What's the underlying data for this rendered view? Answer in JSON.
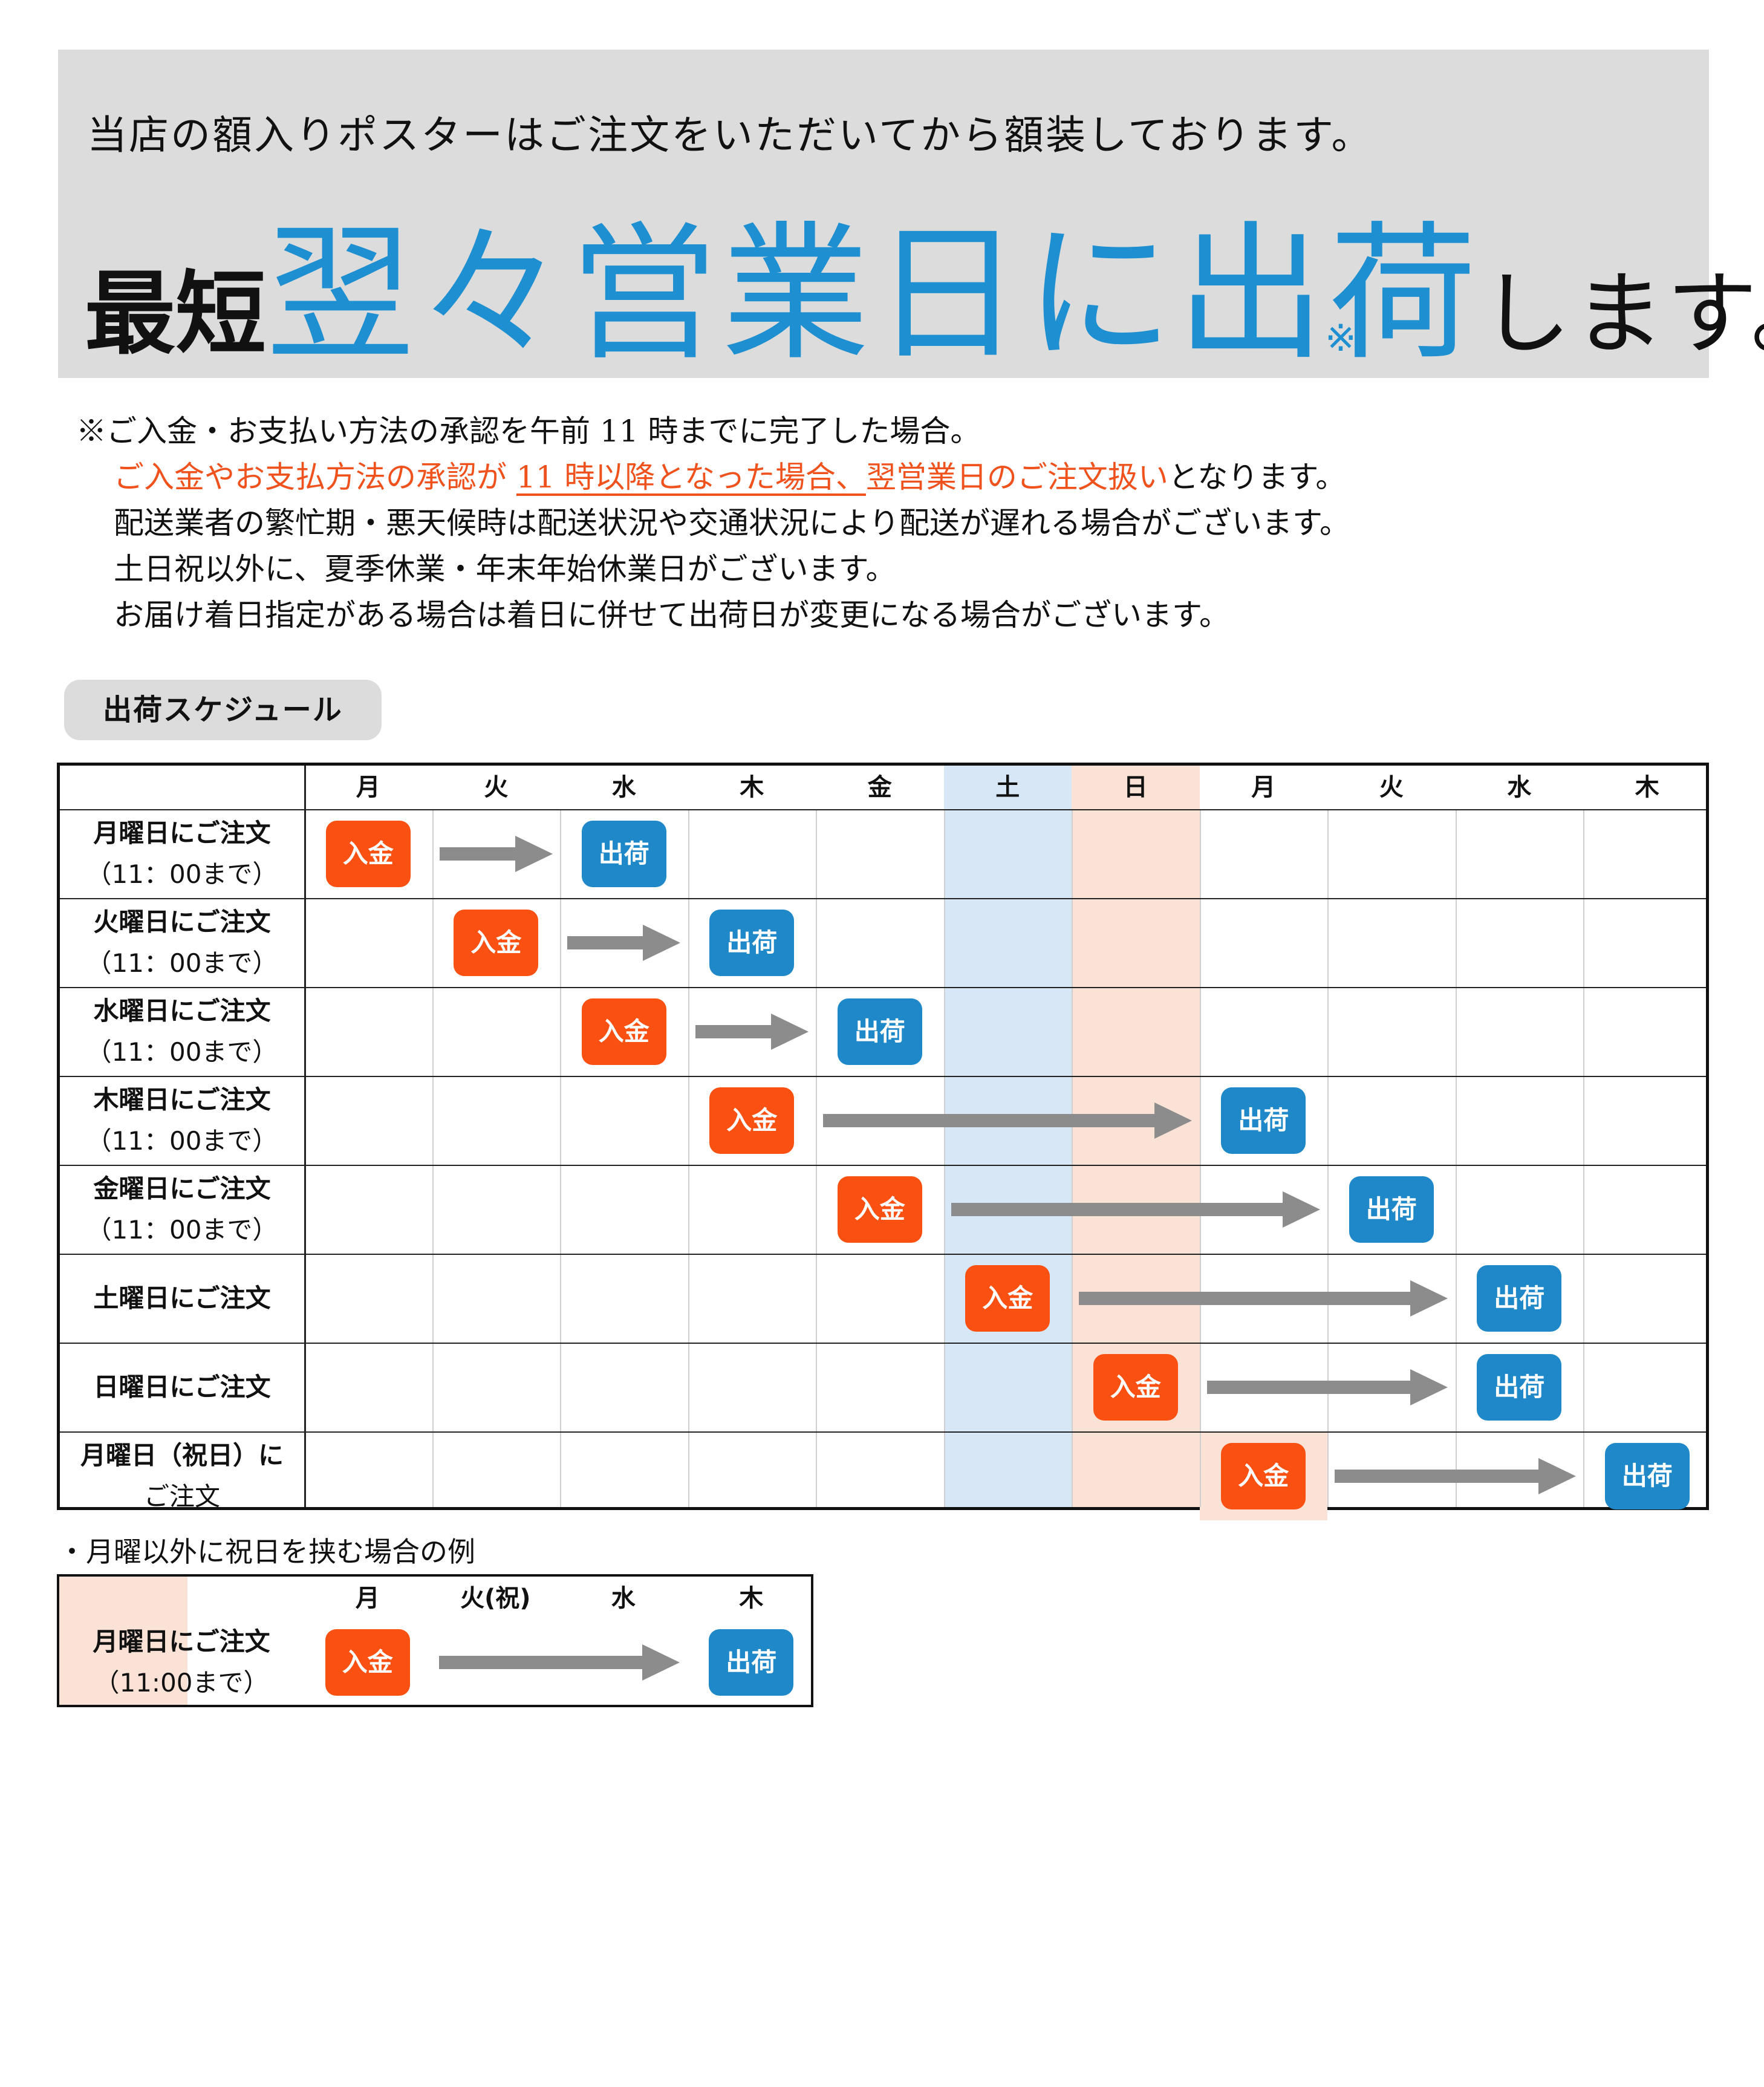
{
  "banner": {
    "line1": "当店の額入りポスターはご注文をいただいてから額装しております。",
    "prefix": "最短",
    "highlight": "翌々営業日に出荷",
    "suffix": "します。",
    "mark": "※"
  },
  "notes": {
    "line1": "※ご入金・お支払い方法の承認を午前 11 時までに完了した場合。",
    "line2_orange_a": "ご入金やお支払方法の承認が ",
    "line2_underlined": "11 時以降となった場合、",
    "line2_orange_b": "翌営業日のご注文扱い",
    "line2_rest": "となります。",
    "line3": "配送業者の繁忙期・悪天候時は配送状況や交通状況により配送が遅れる場合がございます。",
    "line4": "土日祝以外に、夏季休業・年末年始休業日がございます。",
    "line5": "お届け着日指定がある場合は着日に併せて出荷日が変更になる場合がございます。"
  },
  "schedule": {
    "label": "出荷スケジュール",
    "days": [
      "月",
      "火",
      "水",
      "木",
      "金",
      "土",
      "日",
      "月",
      "火",
      "水",
      "木"
    ],
    "colors": {
      "saturday": "#d7e7f6",
      "sunday": "#fbe2d7",
      "payment": "#fa5012",
      "shipping": "#1e88c8",
      "arrow": "#8c8c8c"
    },
    "payment_label": "入金",
    "shipping_label": "出荷",
    "rows": [
      {
        "label": "月曜日にご注文",
        "sub": "（11：00まで）",
        "payment_day": 0,
        "ship_day": 2
      },
      {
        "label": "火曜日にご注文",
        "sub": "（11：00まで）",
        "payment_day": 1,
        "ship_day": 3
      },
      {
        "label": "水曜日にご注文",
        "sub": "（11：00まで）",
        "payment_day": 2,
        "ship_day": 4
      },
      {
        "label": "木曜日にご注文",
        "sub": "（11：00まで）",
        "payment_day": 3,
        "ship_day": 7
      },
      {
        "label": "金曜日にご注文",
        "sub": "（11：00まで）",
        "payment_day": 4,
        "ship_day": 8
      },
      {
        "label": "土曜日にご注文",
        "sub": "",
        "payment_day": 5,
        "ship_day": 9
      },
      {
        "label": "日曜日にご注文",
        "sub": "",
        "payment_day": 6,
        "ship_day": 9
      },
      {
        "label": "月曜日（祝日）に",
        "sub": "ご注文",
        "payment_day": 7,
        "ship_day": 10,
        "holiday": true
      }
    ]
  },
  "example": {
    "caption": "・月曜以外に祝日を挟む場合の例",
    "days": [
      "月",
      "火(祝)",
      "水",
      "木"
    ],
    "row": {
      "label": "月曜日にご注文",
      "sub": "（11:00まで）",
      "payment_day": 0,
      "ship_day": 3
    }
  }
}
